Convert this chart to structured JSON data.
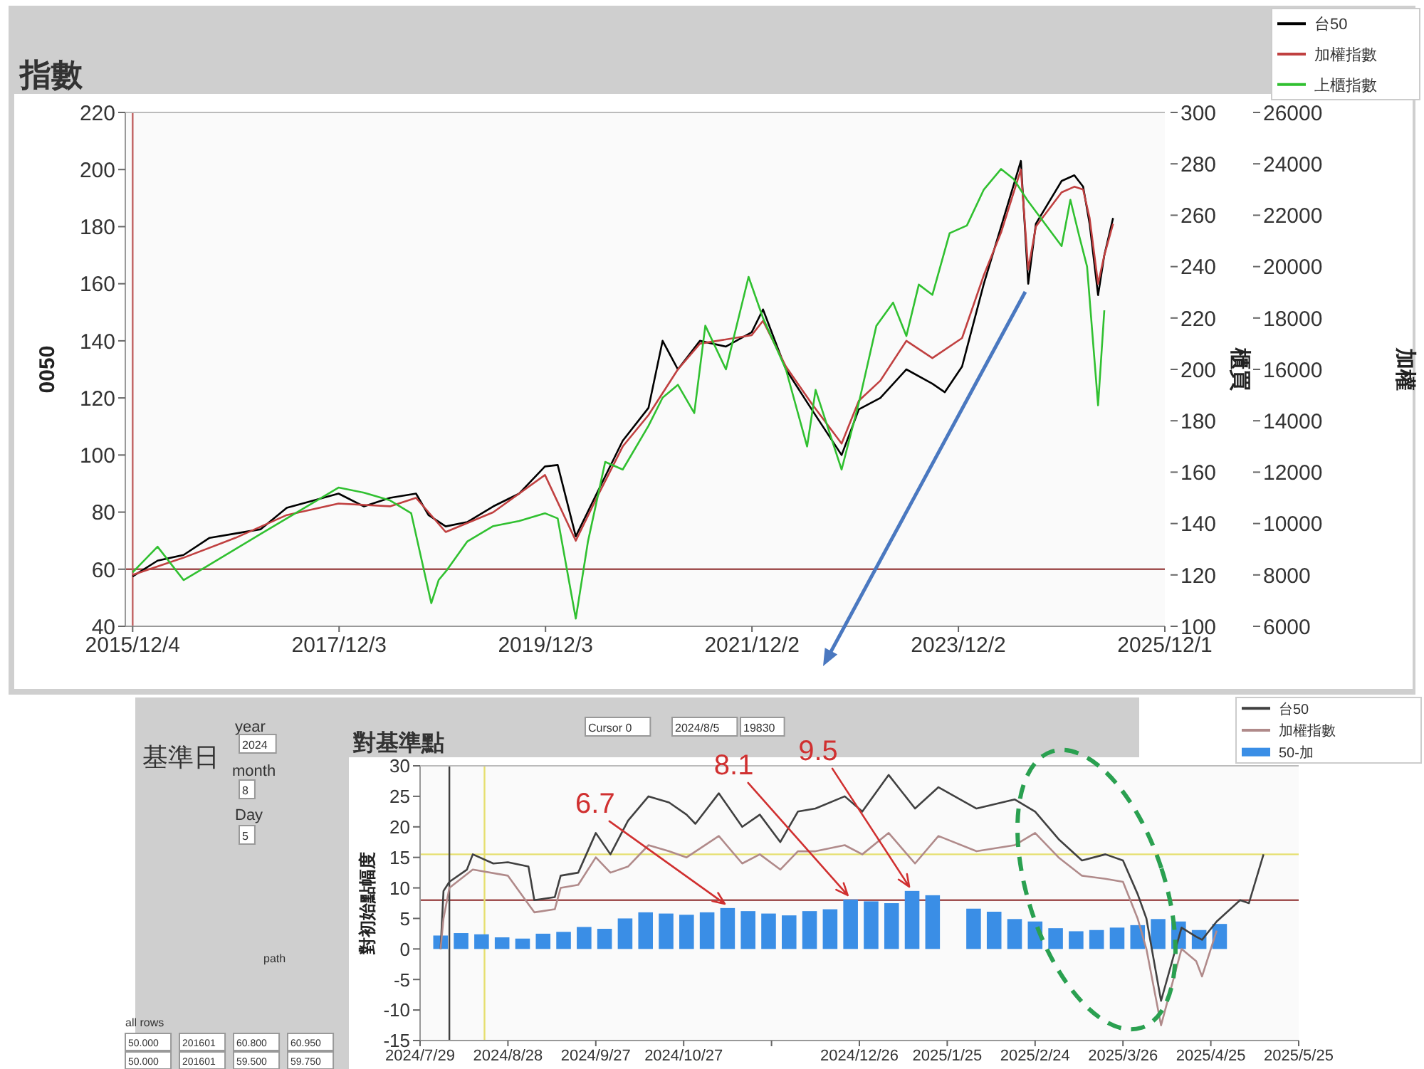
{
  "chart_data": [
    {
      "type": "line",
      "title": "指數",
      "ylabel": "0050",
      "y2label": "櫃買",
      "y3label": "加權",
      "legend": "top right",
      "grid": false,
      "xlim": [
        "2015-11-08",
        "2025-12-01"
      ],
      "xticks": [
        {
          "value": "2015-12-04",
          "label": "2015/12/4"
        },
        {
          "value": "2017-12-03",
          "label": "2017/12/3"
        },
        {
          "value": "2019-12-03",
          "label": "2019/12/3"
        },
        {
          "value": "2021-12-02",
          "label": "2021/12/2"
        },
        {
          "value": "2023-12-02",
          "label": "2023/12/2"
        },
        {
          "value": "2025-12-01",
          "label": "2025/12/1"
        }
      ],
      "ylim": [
        40,
        220
      ],
      "yticks": [
        40,
        60,
        80,
        100,
        120,
        140,
        160,
        180,
        200,
        220
      ],
      "y2lim": [
        100,
        300
      ],
      "y2ticks": [
        100,
        120,
        140,
        160,
        180,
        200,
        220,
        240,
        260,
        280,
        300
      ],
      "y3lim": [
        6000,
        26000
      ],
      "y3ticks": [
        6000,
        8000,
        10000,
        12000,
        14000,
        16000,
        18000,
        20000,
        22000,
        24000,
        26000
      ],
      "ref_lines": [
        {
          "axis": "y",
          "value": 60,
          "color": "#a05050"
        },
        {
          "axis": "x",
          "value": "2015-12-04",
          "color": "#c06060"
        }
      ],
      "series": [
        {
          "name": "台50",
          "color": "#000000",
          "x": [
            "2015-12-04",
            "2016-03-01",
            "2016-06-01",
            "2016-09-01",
            "2016-12-01",
            "2017-03-01",
            "2017-06-01",
            "2017-09-01",
            "2017-12-01",
            "2018-03-01",
            "2018-06-01",
            "2018-09-01",
            "2018-10-15",
            "2018-12-15",
            "2019-03-01",
            "2019-06-01",
            "2019-09-01",
            "2019-12-01",
            "2020-01-15",
            "2020-03-19",
            "2020-06-01",
            "2020-09-01",
            "2020-12-01",
            "2021-01-20",
            "2021-03-15",
            "2021-06-01",
            "2021-09-01",
            "2021-12-01",
            "2022-01-10",
            "2022-04-01",
            "2022-07-01",
            "2022-10-15",
            "2022-12-15",
            "2023-03-01",
            "2023-06-01",
            "2023-09-01",
            "2023-10-15",
            "2023-12-15",
            "2024-03-01",
            "2024-05-01",
            "2024-07-10",
            "2024-08-05",
            "2024-09-01",
            "2024-12-01",
            "2025-01-15",
            "2025-02-15",
            "2025-03-10",
            "2025-04-09",
            "2025-05-01",
            "2025-06-01"
          ],
          "values": [
            57.5,
            63,
            65,
            71,
            72.5,
            74,
            81.5,
            84,
            86.5,
            82,
            85,
            86.5,
            79,
            75,
            76.5,
            82,
            86.5,
            96,
            96.5,
            71.5,
            86.5,
            105,
            116.5,
            140,
            130,
            140,
            138,
            143,
            151,
            130,
            116,
            100,
            116,
            120,
            130,
            125,
            122,
            131,
            160,
            180,
            203,
            160,
            181,
            196,
            198,
            194,
            181,
            156,
            170,
            183
          ]
        },
        {
          "name": "加權指數",
          "color": "#c04040",
          "axis": "y3",
          "x": [
            "2015-12-04",
            "2016-06-01",
            "2016-12-01",
            "2017-06-01",
            "2017-12-01",
            "2018-06-01",
            "2018-09-01",
            "2018-12-15",
            "2019-06-01",
            "2019-12-01",
            "2020-03-19",
            "2020-06-01",
            "2020-09-01",
            "2020-12-01",
            "2021-03-15",
            "2021-06-01",
            "2021-12-01",
            "2022-01-10",
            "2022-04-01",
            "2022-07-01",
            "2022-10-15",
            "2022-12-15",
            "2023-03-01",
            "2023-06-01",
            "2023-09-01",
            "2023-12-15",
            "2024-03-01",
            "2024-05-01",
            "2024-07-10",
            "2024-08-05",
            "2024-09-01",
            "2024-12-01",
            "2025-01-15",
            "2025-02-15",
            "2025-03-10",
            "2025-04-09",
            "2025-05-01",
            "2025-06-01"
          ],
          "values": [
            8000,
            8670,
            9440,
            10330,
            10780,
            10670,
            11000,
            9670,
            10440,
            11890,
            9330,
            11000,
            13000,
            14220,
            16000,
            17000,
            17330,
            17890,
            16110,
            14670,
            13110,
            14780,
            15560,
            17110,
            16440,
            17220,
            19670,
            21330,
            23780,
            19890,
            21560,
            22890,
            23110,
            23000,
            21890,
            19330,
            20440,
            21670
          ]
        },
        {
          "name": "上櫃指數",
          "color": "#30c030",
          "axis": "y2",
          "x": [
            "2015-12-04",
            "2016-03-01",
            "2016-06-01",
            "2016-09-01",
            "2016-12-01",
            "2017-03-01",
            "2017-06-01",
            "2017-09-01",
            "2017-12-01",
            "2018-03-01",
            "2018-06-01",
            "2018-08-15",
            "2018-10-25",
            "2018-11-20",
            "2018-12-20",
            "2019-03-01",
            "2019-06-01",
            "2019-09-01",
            "2019-12-01",
            "2020-01-15",
            "2020-03-19",
            "2020-05-01",
            "2020-07-01",
            "2020-09-01",
            "2020-12-01",
            "2021-01-20",
            "2021-03-15",
            "2021-05-12",
            "2021-06-20",
            "2021-09-01",
            "2021-11-20",
            "2022-01-10",
            "2022-04-01",
            "2022-06-15",
            "2022-07-15",
            "2022-10-15",
            "2022-12-15",
            "2023-02-15",
            "2023-04-15",
            "2023-06-01",
            "2023-07-15",
            "2023-09-01",
            "2023-11-01",
            "2024-01-01",
            "2024-03-01",
            "2024-05-01",
            "2024-06-15",
            "2024-08-01",
            "2024-10-01",
            "2024-12-01",
            "2025-01-01",
            "2025-02-01",
            "2025-03-01",
            "2025-04-09",
            "2025-05-01"
          ],
          "values": [
            121,
            131,
            118,
            124,
            130,
            136,
            142,
            148,
            154,
            152,
            149,
            144,
            109,
            118,
            122,
            133,
            139,
            141,
            144,
            142,
            103,
            133,
            164,
            161,
            178,
            189,
            194,
            183,
            217,
            200,
            236,
            220,
            200,
            170,
            192,
            161,
            187,
            217,
            226,
            213,
            233,
            229,
            253,
            256,
            270,
            278,
            274,
            266,
            257,
            248,
            266,
            252,
            240,
            186,
            223
          ]
        }
      ]
    },
    {
      "type": "line",
      "title": "對基準點",
      "ylabel": "對初始點幅度",
      "legend": "top right",
      "grid": false,
      "xlim": [
        "2024-07-29",
        "2025-05-25"
      ],
      "xticks": [
        {
          "value": "2024-07-29",
          "label": "2024/7/29"
        },
        {
          "value": "2024-08-28",
          "label": "2024/8/28"
        },
        {
          "value": "2024-09-27",
          "label": "2024/9/27"
        },
        {
          "value": "2024-10-27",
          "label": "2024/10/27"
        },
        {
          "value": "2024-11-26",
          "label": null
        },
        {
          "value": "2024-12-26",
          "label": "2024/12/26"
        },
        {
          "value": "2025-01-25",
          "label": "2025/1/25"
        },
        {
          "value": "2025-02-24",
          "label": "2025/2/24"
        },
        {
          "value": "2025-03-26",
          "label": "2025/3/26"
        },
        {
          "value": "2025-04-25",
          "label": "2025/4/25"
        },
        {
          "value": "2025-05-25",
          "label": "2025/5/25"
        }
      ],
      "ylim": [
        -15,
        30
      ],
      "yticks": [
        -15,
        -10,
        -5,
        0,
        5,
        10,
        15,
        20,
        25,
        30
      ],
      "ref_lines": [
        {
          "axis": "y",
          "value": 15.5,
          "color": "#e6df70"
        },
        {
          "axis": "y",
          "value": 8,
          "color": "#a05050"
        },
        {
          "axis": "x",
          "value": "2024-08-08",
          "color": "#404040"
        },
        {
          "axis": "x",
          "value": "2024-08-20",
          "color": "#e6df70"
        }
      ],
      "annotations": [
        {
          "text": "6.7",
          "x": "2024-11-11",
          "y": 6.7
        },
        {
          "text": "8.1",
          "x": "2024-12-23",
          "y": 8.1
        },
        {
          "text": "9.5",
          "x": "2025-01-13",
          "y": 9.5
        }
      ],
      "series": [
        {
          "name": "台50",
          "color": "#404040",
          "x": [
            "2024-08-05",
            "2024-08-06",
            "2024-08-08",
            "2024-08-14",
            "2024-08-16",
            "2024-08-23",
            "2024-08-28",
            "2024-09-04",
            "2024-09-06",
            "2024-09-13",
            "2024-09-15",
            "2024-09-21",
            "2024-09-27",
            "2024-10-02",
            "2024-10-08",
            "2024-10-15",
            "2024-10-22",
            "2024-10-28",
            "2024-10-31",
            "2024-11-08",
            "2024-11-16",
            "2024-11-22",
            "2024-11-29",
            "2024-12-05",
            "2024-12-11",
            "2024-12-21",
            "2024-12-27",
            "2025-01-05",
            "2025-01-14",
            "2025-01-22",
            "2025-02-04",
            "2025-02-17",
            "2025-02-24",
            "2025-03-04",
            "2025-03-12",
            "2025-03-20",
            "2025-03-26",
            "2025-03-31",
            "2025-04-03",
            "2025-04-08",
            "2025-04-15",
            "2025-04-20",
            "2025-04-22",
            "2025-04-27",
            "2025-05-05",
            "2025-05-08",
            "2025-05-13"
          ],
          "values": [
            0,
            9.5,
            11,
            13,
            15.5,
            14,
            14.2,
            13.5,
            8,
            8.5,
            12,
            12.5,
            19,
            15.5,
            21,
            25,
            24,
            22,
            20.5,
            25.5,
            20,
            22,
            17.5,
            22.5,
            23,
            25,
            22.5,
            28.5,
            23,
            26.5,
            23,
            24.5,
            22.5,
            18,
            14.5,
            15.5,
            14.5,
            9,
            5,
            -8.5,
            3.5,
            2,
            1.5,
            4.5,
            8,
            7.5,
            15.5
          ]
        },
        {
          "name": "加權指數",
          "color": "#b08a8a",
          "x": [
            "2024-08-05",
            "2024-08-06",
            "2024-08-08",
            "2024-08-16",
            "2024-08-28",
            "2024-09-06",
            "2024-09-13",
            "2024-09-15",
            "2024-09-21",
            "2024-09-27",
            "2024-10-02",
            "2024-10-08",
            "2024-10-15",
            "2024-10-22",
            "2024-10-28",
            "2024-11-08",
            "2024-11-16",
            "2024-11-22",
            "2024-11-29",
            "2024-12-05",
            "2024-12-11",
            "2024-12-21",
            "2024-12-27",
            "2025-01-05",
            "2025-01-14",
            "2025-01-22",
            "2025-02-04",
            "2025-02-17",
            "2025-02-24",
            "2025-03-04",
            "2025-03-12",
            "2025-03-20",
            "2025-03-26",
            "2025-03-31",
            "2025-04-03",
            "2025-04-08",
            "2025-04-15",
            "2025-04-20",
            "2025-04-22",
            "2025-04-27"
          ],
          "values": [
            0,
            5,
            10,
            13,
            12,
            6,
            6.5,
            10,
            10.5,
            15,
            12.5,
            13.5,
            17,
            16,
            15,
            18.5,
            14,
            15.5,
            13,
            16,
            16,
            17,
            15.5,
            19,
            14,
            18.5,
            16,
            17,
            19,
            15,
            12,
            11.5,
            11,
            5,
            0,
            -12.5,
            0,
            -2,
            -4.5,
            3
          ]
        },
        {
          "name": "50-加",
          "type": "bar",
          "color": "#3a8ee6",
          "x": [
            "2024-08-05",
            "2024-08-12",
            "2024-08-19",
            "2024-08-26",
            "2024-09-02",
            "2024-09-09",
            "2024-09-16",
            "2024-09-23",
            "2024-09-30",
            "2024-10-07",
            "2024-10-14",
            "2024-10-21",
            "2024-10-28",
            "2024-11-04",
            "2024-11-11",
            "2024-11-18",
            "2024-11-25",
            "2024-12-02",
            "2024-12-09",
            "2024-12-16",
            "2024-12-23",
            "2024-12-30",
            "2025-01-06",
            "2025-01-13",
            "2025-01-20",
            "2025-02-03",
            "2025-02-10",
            "2025-02-17",
            "2025-02-24",
            "2025-03-03",
            "2025-03-10",
            "2025-03-17",
            "2025-03-24",
            "2025-03-31",
            "2025-04-07",
            "2025-04-14",
            "2025-04-21",
            "2025-04-28"
          ],
          "values": [
            2.2,
            2.6,
            2.4,
            1.9,
            1.7,
            2.5,
            2.8,
            3.6,
            3.3,
            5.0,
            6.0,
            5.8,
            5.6,
            6.0,
            6.7,
            6.2,
            5.8,
            5.5,
            6.2,
            6.5,
            8.1,
            7.8,
            7.5,
            9.5,
            8.8,
            6.6,
            6.1,
            4.9,
            4.5,
            3.4,
            2.9,
            3.1,
            3.5,
            3.9,
            4.9,
            4.5,
            3.1,
            4.1
          ]
        }
      ]
    },
    {
      "type": "other",
      "annotations": [
        "基準日",
        "year",
        "2024",
        "month",
        "8",
        "Day",
        "5",
        "path",
        "all rows",
        "50.000",
        "201601",
        "60.800",
        "60.950",
        "50.000",
        "201601",
        "59.500",
        "59.750",
        "Cursor 0",
        "2024/8/5",
        "19830"
      ]
    }
  ]
}
